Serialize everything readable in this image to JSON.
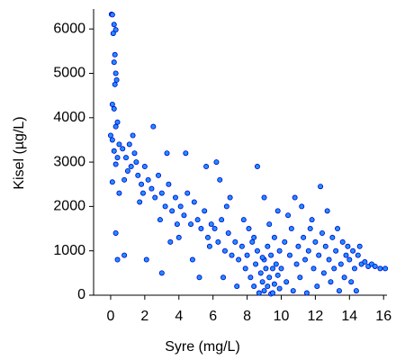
{
  "chart_data": {
    "type": "scatter",
    "x_label": "Syre (mg/L)",
    "y_label": "Kisel (µg/L)",
    "color": "#1e90ff",
    "edge_color": "#0000cd",
    "xlim": [
      -1,
      16.2
    ],
    "ylim": [
      0,
      6450
    ],
    "xticks": [
      0,
      2,
      4,
      6,
      8,
      10,
      12,
      14,
      16
    ],
    "yticks": [
      0,
      1000,
      2000,
      3000,
      4000,
      5000,
      6000
    ],
    "x": [
      0.05,
      0.1,
      0.2,
      0.3,
      0.15,
      0.25,
      0.2,
      0.3,
      0.35,
      0.25,
      0.1,
      0.2,
      0.4,
      0.3,
      0.0,
      0.1,
      0.5,
      0.2,
      0.4,
      0.3,
      0.1,
      0.5,
      0.3,
      0.4,
      0.8,
      0.7,
      0.9,
      1.1,
      1.2,
      1.4,
      1.6,
      1.8,
      1.0,
      1.5,
      1.9,
      1.3,
      0.8,
      1.7,
      2.0,
      2.2,
      2.4,
      2.6,
      2.8,
      3.0,
      3.2,
      3.4,
      3.6,
      3.8,
      2.5,
      3.3,
      2.1,
      3.0,
      3.5,
      2.9,
      3.9,
      4.1,
      4.3,
      4.5,
      4.7,
      4.9,
      5.1,
      5.3,
      5.5,
      5.7,
      5.9,
      4.4,
      5.6,
      4.8,
      5.2,
      4.0,
      5.8,
      6.1,
      6.3,
      6.5,
      6.7,
      6.9,
      7.1,
      7.3,
      7.5,
      7.7,
      7.9,
      6.2,
      6.4,
      7.0,
      6.6,
      7.4,
      7.8,
      6.8,
      8.0,
      8.2,
      8.3,
      8.4,
      8.5,
      8.6,
      8.7,
      8.8,
      8.9,
      9.0,
      9.0,
      9.1,
      9.2,
      9.2,
      9.3,
      9.4,
      9.4,
      9.5,
      9.6,
      9.6,
      9.7,
      9.8,
      9.9,
      9.9,
      10.0,
      8.1,
      8.6,
      9.0,
      9.3,
      9.8,
      8.4,
      9.5,
      8.9,
      10.2,
      10.3,
      10.5,
      10.6,
      10.7,
      10.9,
      11.0,
      11.1,
      11.3,
      11.4,
      11.5,
      11.6,
      11.8,
      11.9,
      12.0,
      12.1,
      12.2,
      12.3,
      12.4,
      12.5,
      12.6,
      12.7,
      12.8,
      12.9,
      13.0,
      13.1,
      13.2,
      13.3,
      13.4,
      13.5,
      13.6,
      13.7,
      13.8,
      13.9,
      10.4,
      11.2,
      10.8,
      11.7,
      14.0,
      14.1,
      14.2,
      14.3,
      14.4,
      14.5,
      14.7,
      14.9,
      15.1,
      15.3,
      15.5,
      15.8,
      16.1,
      14.6
    ],
    "values": [
      6330,
      6320,
      6100,
      5980,
      5900,
      5420,
      5250,
      5000,
      4850,
      4750,
      4300,
      4200,
      3900,
      3800,
      3600,
      3500,
      3400,
      3250,
      3100,
      2950,
      2550,
      2300,
      1400,
      800,
      900,
      3300,
      3100,
      3400,
      2900,
      3200,
      2700,
      2500,
      2800,
      3000,
      2300,
      3600,
      2600,
      2100,
      2900,
      2600,
      2400,
      2200,
      2700,
      2300,
      2000,
      2500,
      1900,
      2200,
      3800,
      3200,
      800,
      500,
      1200,
      1700,
      1600,
      2000,
      1800,
      2300,
      1600,
      2100,
      1700,
      1500,
      1900,
      1300,
      1600,
      3200,
      2900,
      800,
      400,
      1300,
      1100,
      1500,
      1200,
      1700,
      1000,
      1400,
      900,
      1200,
      800,
      1100,
      600,
      3000,
      2600,
      2200,
      400,
      200,
      1700,
      2000,
      900,
      400,
      1200,
      200,
      700,
      1000,
      50,
      500,
      300,
      800,
      100,
      600,
      1100,
      200,
      400,
      900,
      30,
      600,
      1300,
      250,
      700,
      450,
      1000,
      150,
      600,
      1500,
      2900,
      2200,
      1600,
      1900,
      1300,
      50,
      850,
      1200,
      300,
      900,
      1500,
      100,
      700,
      1100,
      400,
      1300,
      800,
      50,
      1000,
      1700,
      600,
      1200,
      200,
      900,
      2450,
      1400,
      500,
      1100,
      1900,
      800,
      300,
      1300,
      600,
      1000,
      1500,
      100,
      700,
      1200,
      400,
      900,
      1100,
      1800,
      2000,
      2200,
      1500,
      800,
      300,
      1000,
      600,
      100,
      900,
      700,
      750,
      650,
      700,
      650,
      600,
      600,
      1100
    ]
  }
}
